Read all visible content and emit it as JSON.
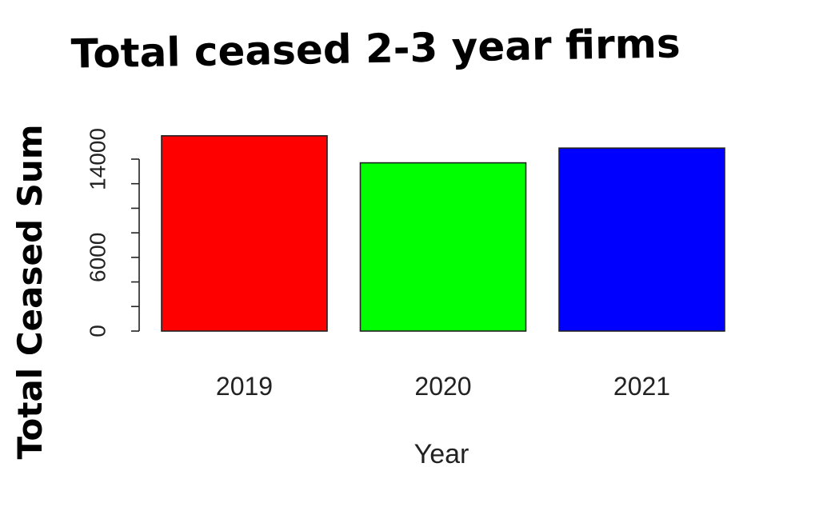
{
  "chart_data": {
    "type": "bar",
    "title": "Total ceased 2-3 year firms",
    "xlabel": "Year",
    "ylabel": "Total Ceased Sum",
    "categories": [
      "2019",
      "2020",
      "2021"
    ],
    "values": [
      15900,
      13700,
      14900
    ],
    "colors": [
      "#ff0000",
      "#00ff00",
      "#0000ff"
    ],
    "ylim": [
      0,
      16800
    ],
    "yticks": [
      0,
      6000,
      14000
    ],
    "ytick_labels": [
      "0",
      "6000",
      "14000"
    ],
    "grid": false,
    "legend": "none"
  }
}
